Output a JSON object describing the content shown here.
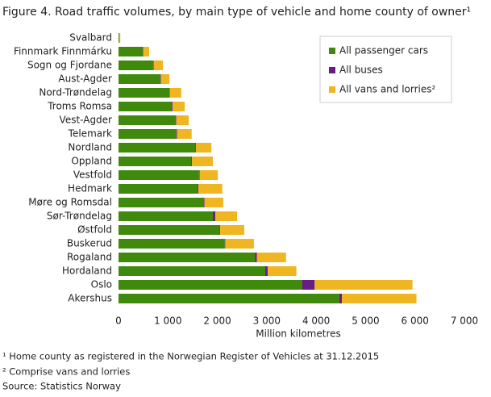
{
  "chart_data": {
    "type": "stacked_barh",
    "title": "Figure 4. Road traffic volumes, by main type of vehicle and home county of owner¹",
    "x_label": "Million kilometres",
    "categories": [
      "Svalbard",
      "Finnmark Finnmárku",
      "Sogn og Fjordane",
      "Aust-Agder",
      "Nord-Trøndelag",
      "Troms Romsa",
      "Vest-Agder",
      "Telemark",
      "Nordland",
      "Oppland",
      "Vestfold",
      "Hedmark",
      "Møre og Romsdal",
      "Sør-Trøndelag",
      "Østfold",
      "Buskerud",
      "Rogaland",
      "Hordaland",
      "Oslo",
      "Akershus"
    ],
    "series": [
      {
        "name": "All passenger cars",
        "color": "#3f8a0c",
        "values": [
          15,
          490,
          700,
          850,
          1030,
          1080,
          1160,
          1170,
          1550,
          1470,
          1630,
          1600,
          1730,
          1910,
          2040,
          2150,
          2760,
          2970,
          3720,
          4470
        ]
      },
      {
        "name": "All buses",
        "color": "#6a1b87",
        "values": [
          1,
          10,
          10,
          10,
          10,
          15,
          10,
          15,
          15,
          15,
          10,
          15,
          10,
          50,
          15,
          10,
          40,
          50,
          250,
          50
        ]
      },
      {
        "name": "All vans and lorries²",
        "color": "#efb622",
        "values": [
          20,
          120,
          190,
          170,
          230,
          245,
          250,
          295,
          315,
          425,
          370,
          485,
          380,
          440,
          490,
          580,
          590,
          580,
          1980,
          1510
        ]
      }
    ],
    "xlim": [
      0,
      7000
    ],
    "xticks": [
      0,
      {
        "value": 1000,
        "label": "1 000"
      },
      {
        "value": 2000,
        "label": "2 000"
      },
      {
        "value": 3000,
        "label": "3 000"
      },
      {
        "value": 4000,
        "label": "4 000"
      },
      {
        "value": 5000,
        "label": "5 000"
      },
      {
        "value": 6000,
        "label": "6 000"
      },
      {
        "value": 7000,
        "label": "7 000"
      }
    ],
    "legend": "top-right",
    "notes": [
      "¹ Home county as registered in the Norwegian Register of Vehicles at 31.12.2015",
      "² Comprise vans and lorries",
      "Source: Statistics Norway"
    ]
  }
}
